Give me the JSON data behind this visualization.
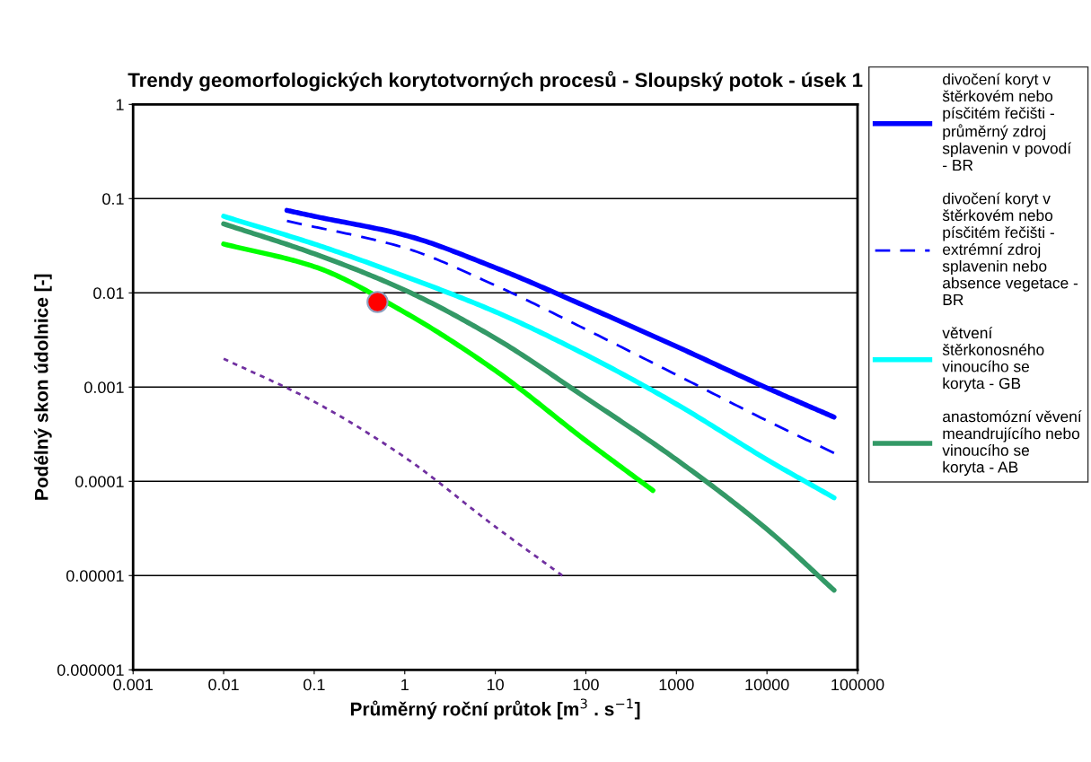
{
  "chart_data": {
    "type": "line",
    "title": "Trendy geomorfologických korytotvorných procesů - Sloupský potok - úsek 1",
    "xlabel": "Průměrný roční průtok [m$^{3}$ . s$^{−1}$]",
    "ylabel": "Podélný skon údolnice [-]",
    "log": "xy",
    "xlim": [
      0.001,
      100000
    ],
    "ylim": [
      1e-06,
      1
    ],
    "xticks": [
      {
        "value": 0.001,
        "label": "0.001"
      },
      {
        "value": 0.01,
        "label": "0.01"
      },
      {
        "value": 0.1,
        "label": "0.1"
      },
      1,
      10,
      100,
      1000,
      10000,
      100000
    ],
    "yticks": [
      {
        "value": 1e-06,
        "label": "0.000001"
      },
      {
        "value": 1e-05,
        "label": "0.00001"
      },
      {
        "value": 0.0001,
        "label": "0.0001"
      },
      {
        "value": 0.001,
        "label": "0.001"
      },
      {
        "value": 0.01,
        "label": "0.01"
      },
      {
        "value": 0.1,
        "label": "0.1"
      },
      1
    ],
    "grid": "y",
    "legend": "right",
    "marker": "none",
    "series": [
      {
        "name": "divočení koryt v štěrkovém nebo písčitém řečišti - průměrný zdroj splavenin v povodí - BR",
        "color": "#0000ff",
        "line_style": "solid",
        "x": [
          0.05,
          0.1,
          1,
          10,
          100,
          1000,
          10000,
          55000
        ],
        "values": [
          0.075,
          0.065,
          0.041,
          0.0185,
          0.0072,
          0.0027,
          0.00098,
          0.00048
        ]
      },
      {
        "name": "divočení koryt v štěrkovém nebo písčitém řečišti - extrémní zdroj splavenin nebo absence vegetace - BR",
        "color": "#0000ff",
        "line_style": "dashed",
        "x": [
          0.05,
          1,
          10,
          100,
          1000,
          10000,
          55000
        ],
        "values": [
          0.058,
          0.03,
          0.012,
          0.0041,
          0.00135,
          0.00044,
          0.0002
        ]
      },
      {
        "name": "větvení štěrkonosného vinoucího se koryta - GB",
        "color": "#00ffff",
        "line_style": "solid",
        "x": [
          0.01,
          0.1,
          1,
          10,
          100,
          1000,
          10000,
          55000
        ],
        "values": [
          0.065,
          0.033,
          0.015,
          0.0063,
          0.0022,
          0.00066,
          0.00017,
          6.7e-05
        ]
      },
      {
        "name": "anastomózní věvení meandrujícího nebo vinoucího se koryta - AB",
        "color": "#339966",
        "line_style": "solid",
        "x": [
          0.01,
          0.1,
          1,
          10,
          100,
          1000,
          10000,
          55000
        ],
        "values": [
          0.054,
          0.026,
          0.0107,
          0.0033,
          0.00077,
          0.00017,
          3.1e-05,
          7e-06
        ]
      },
      {
        "color": "#00ff00",
        "line_style": "solid",
        "x": [
          0.01,
          0.1,
          1,
          10,
          100,
          550
        ],
        "values": [
          0.033,
          0.019,
          0.0062,
          0.0015,
          0.00027,
          8e-05
        ]
      },
      {
        "color": "#7030a0",
        "line_style": "dotted",
        "x": [
          0.01,
          0.1,
          1,
          10,
          55
        ],
        "values": [
          0.002,
          0.0007,
          0.00018,
          3.3e-05,
          1e-05
        ]
      },
      {
        "type": "scatter",
        "marker": "circle",
        "color": "#ff0000",
        "x": [
          0.5
        ],
        "values": [
          0.008
        ]
      }
    ]
  }
}
